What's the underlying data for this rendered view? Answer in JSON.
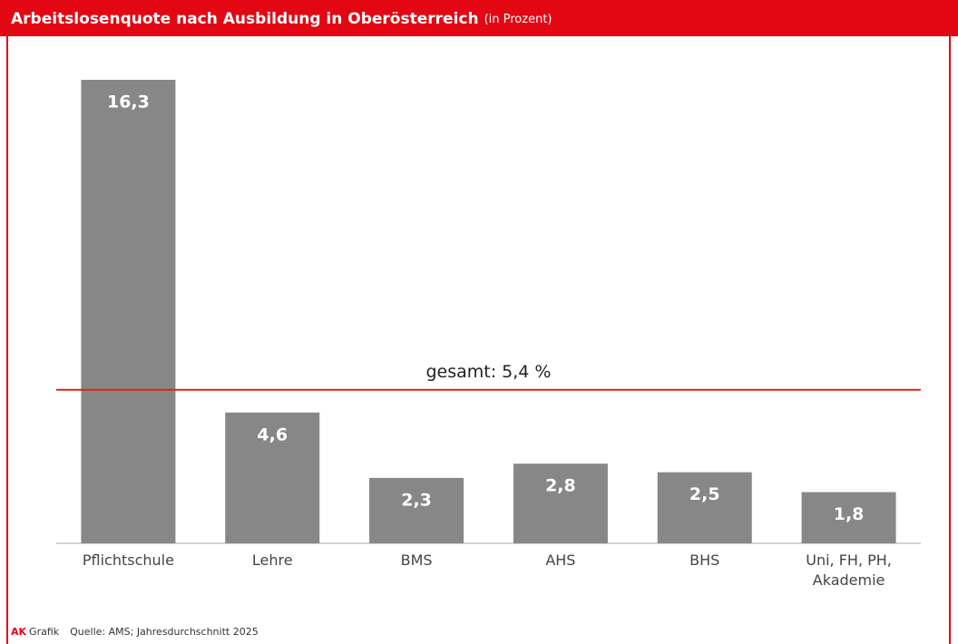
{
  "chart_data": {
    "type": "bar",
    "title": "Arbeitslosenquote nach Ausbildung in Oberösterreich",
    "subtitle": "(in Prozent)",
    "categories": [
      "Pflichtschule",
      "Lehre",
      "BMS",
      "AHS",
      "BHS",
      "Uni, FH, PH, Akademie"
    ],
    "values": [
      16.3,
      4.6,
      2.3,
      2.8,
      2.5,
      1.8
    ],
    "value_labels": [
      "16,3",
      "4,6",
      "2,3",
      "2,8",
      "2,5",
      "1,8"
    ],
    "color": "#878787",
    "reference_line": {
      "value": 5.4,
      "label": "gesamt: 5,4 %",
      "color": "#d9261c"
    },
    "footer": {
      "brand": "AK",
      "brand_suffix": "Grafik",
      "source": "Quelle: AMS; Jahresdurchschnitt 2025"
    }
  }
}
